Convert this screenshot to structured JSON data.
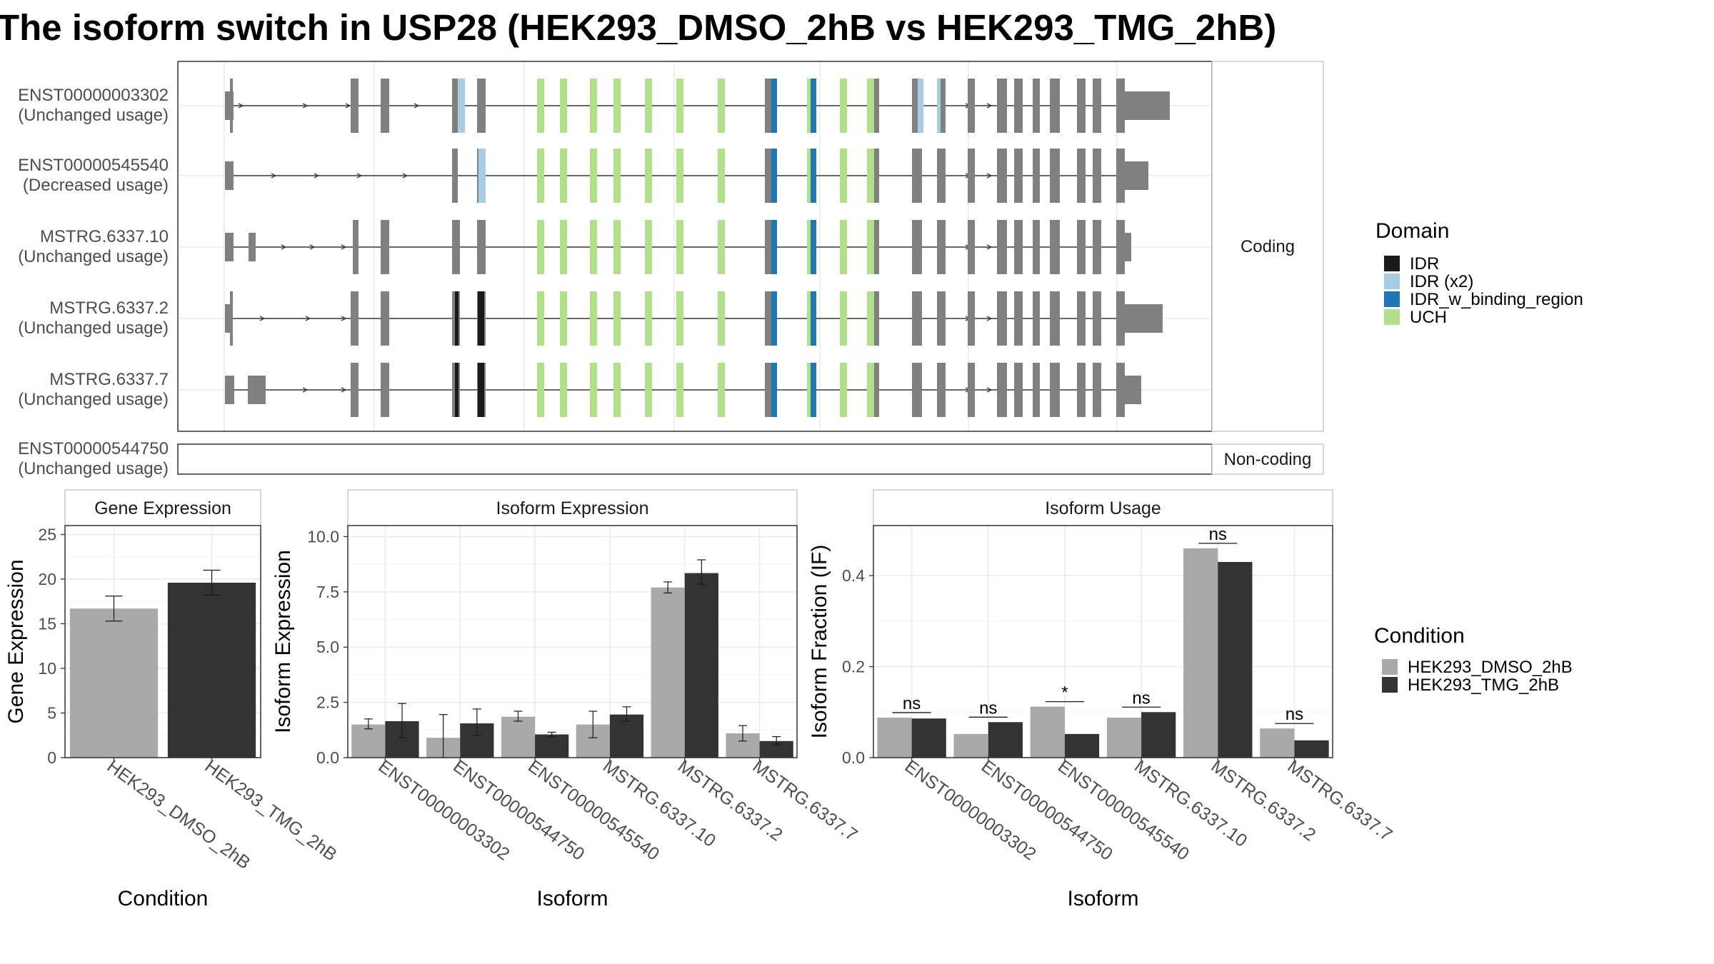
{
  "title": "The isoform switch in USP28 (HEK293_DMSO_2hB vs HEK293_TMG_2hB)",
  "colors": {
    "IDR": "#1a1a1a",
    "IDR_x2": "#a6cee3",
    "IDR_w_binding_region": "#1f78b4",
    "UCH": "#b2df8a",
    "exon": "#808080",
    "cond1": "#a9a9a9",
    "cond2": "#333333",
    "grid": "#ebebeb",
    "panel_border": "#333333"
  },
  "structure": {
    "coding_strip_label": "Coding",
    "noncoding_strip_label": "Non-coding",
    "transcripts": [
      {
        "id": "ENST00000003302",
        "usage": "(Unchanged usage)",
        "coding": true
      },
      {
        "id": "ENST00000545540",
        "usage": "(Decreased usage)",
        "coding": true
      },
      {
        "id": "MSTRG.6337.10",
        "usage": "(Unchanged usage)",
        "coding": true
      },
      {
        "id": "MSTRG.6337.2",
        "usage": "(Unchanged usage)",
        "coding": true
      },
      {
        "id": "MSTRG.6337.7",
        "usage": "(Unchanged usage)",
        "coding": true
      },
      {
        "id": "ENST00000544750",
        "usage": "(Unchanged usage)",
        "coding": false
      }
    ]
  },
  "legend_domain": {
    "title": "Domain",
    "entries": [
      {
        "label": "IDR",
        "color": "#1a1a1a"
      },
      {
        "label": "IDR (x2)",
        "color": "#a6cee3"
      },
      {
        "label": "IDR_w_binding_region",
        "color": "#1f78b4"
      },
      {
        "label": "UCH",
        "color": "#b2df8a"
      }
    ]
  },
  "legend_condition": {
    "title": "Condition",
    "entries": [
      {
        "label": "HEK293_DMSO_2hB",
        "color": "#a9a9a9"
      },
      {
        "label": "HEK293_TMG_2hB",
        "color": "#333333"
      }
    ]
  },
  "chart_data": [
    {
      "type": "bar",
      "title": "Gene Expression",
      "xlabel": "Condition",
      "ylabel": "Gene Expression",
      "ylim": [
        0,
        26
      ],
      "yticks": [
        0,
        5,
        10,
        15,
        20,
        25
      ],
      "categories": [
        "HEK293_DMSO_2hB",
        "HEK293_TMG_2hB"
      ],
      "values": [
        16.7,
        19.6
      ],
      "err_low": [
        15.3,
        18.2
      ],
      "err_high": [
        18.1,
        21.0
      ]
    },
    {
      "type": "bar",
      "title": "Isoform Expression",
      "xlabel": "Isoform",
      "ylabel": "Isoform Expression",
      "ylim": [
        0,
        10.5
      ],
      "yticks": [
        0.0,
        2.5,
        5.0,
        7.5,
        10.0
      ],
      "ytick_labels": [
        "0.0",
        "2.5",
        "5.0",
        "7.5",
        "10.0"
      ],
      "categories": [
        "ENST00000003302",
        "ENST00000544750",
        "ENST00000545540",
        "MSTRG.6337.10",
        "MSTRG.6337.2",
        "MSTRG.6337.7"
      ],
      "series": [
        {
          "name": "HEK293_DMSO_2hB",
          "values": [
            1.5,
            0.9,
            1.85,
            1.5,
            7.7,
            1.1
          ],
          "err_low": [
            1.3,
            0.0,
            1.65,
            0.9,
            7.45,
            0.75
          ],
          "err_high": [
            1.75,
            1.95,
            2.1,
            2.1,
            7.95,
            1.45
          ]
        },
        {
          "name": "HEK293_TMG_2hB",
          "values": [
            1.65,
            1.55,
            1.05,
            1.95,
            8.35,
            0.75
          ],
          "err_low": [
            0.9,
            1.0,
            0.95,
            1.65,
            7.85,
            0.6
          ],
          "err_high": [
            2.45,
            2.2,
            1.15,
            2.3,
            8.95,
            0.95
          ]
        }
      ]
    },
    {
      "type": "bar",
      "title": "Isoform Usage",
      "xlabel": "Isoform",
      "ylabel": "Isoform Fraction (IF)",
      "ylim": [
        0,
        0.51
      ],
      "yticks": [
        0.0,
        0.2,
        0.4
      ],
      "ytick_labels": [
        "0.0",
        "0.2",
        "0.4"
      ],
      "categories": [
        "ENST00000003302",
        "ENST00000544750",
        "ENST00000545540",
        "MSTRG.6337.10",
        "MSTRG.6337.2",
        "MSTRG.6337.7"
      ],
      "series": [
        {
          "name": "HEK293_DMSO_2hB",
          "values": [
            0.088,
            0.052,
            0.112,
            0.088,
            0.46,
            0.064
          ]
        },
        {
          "name": "HEK293_TMG_2hB",
          "values": [
            0.086,
            0.078,
            0.052,
            0.1,
            0.43,
            0.038
          ]
        }
      ],
      "significance": [
        "ns",
        "ns",
        "*",
        "ns",
        "ns",
        "ns"
      ]
    }
  ]
}
